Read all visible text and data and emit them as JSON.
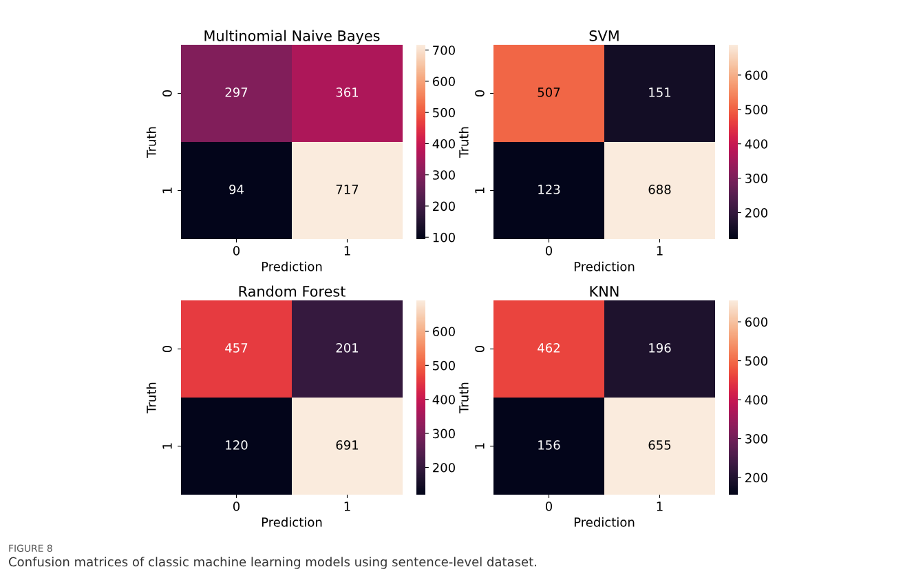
{
  "chart_data": [
    {
      "type": "heatmap",
      "title": "Multinomial Naive Bayes",
      "xlabel": "Prediction",
      "ylabel": "Truth",
      "categories": [
        "0",
        "1"
      ],
      "y_categories": [
        "0",
        "1"
      ],
      "cells": [
        [
          297,
          361
        ],
        [
          94,
          717
        ]
      ],
      "data_labels": true,
      "clim": [
        94,
        717
      ],
      "cticks": [
        100,
        200,
        300,
        400,
        500,
        600,
        700
      ]
    },
    {
      "type": "heatmap",
      "title": "SVM",
      "xlabel": "Prediction",
      "ylabel": "Truth",
      "categories": [
        "0",
        "1"
      ],
      "y_categories": [
        "0",
        "1"
      ],
      "cells": [
        [
          507,
          151
        ],
        [
          123,
          688
        ]
      ],
      "data_labels": true,
      "clim": [
        123,
        688
      ],
      "cticks": [
        200,
        300,
        400,
        500,
        600
      ]
    },
    {
      "type": "heatmap",
      "title": "Random Forest",
      "xlabel": "Prediction",
      "ylabel": "Truth",
      "categories": [
        "0",
        "1"
      ],
      "y_categories": [
        "0",
        "1"
      ],
      "cells": [
        [
          457,
          201
        ],
        [
          120,
          691
        ]
      ],
      "data_labels": true,
      "clim": [
        120,
        691
      ],
      "cticks": [
        200,
        300,
        400,
        500,
        600
      ]
    },
    {
      "type": "heatmap",
      "title": "KNN",
      "xlabel": "Prediction",
      "ylabel": "Truth",
      "categories": [
        "0",
        "1"
      ],
      "y_categories": [
        "0",
        "1"
      ],
      "cells": [
        [
          462,
          196
        ],
        [
          156,
          655
        ]
      ],
      "data_labels": true,
      "clim": [
        156,
        655
      ],
      "cticks": [
        200,
        300,
        400,
        500,
        600
      ],
      "annotations": [
        "FIGURE 8",
        "Confusion matrices of classic machine learning models using sentence-level dataset."
      ]
    }
  ]
}
